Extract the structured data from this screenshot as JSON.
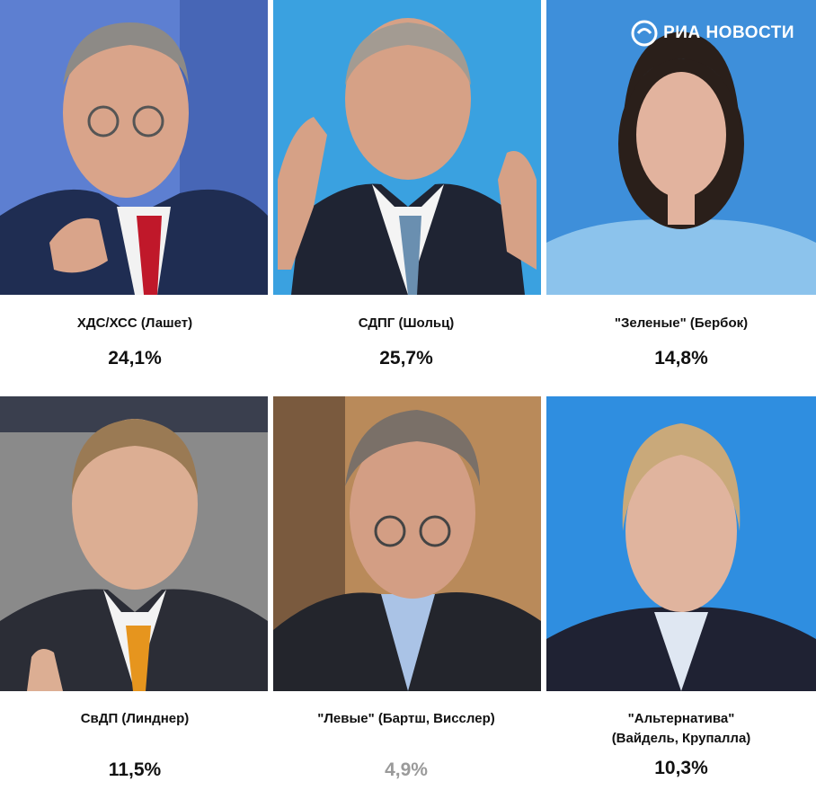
{
  "logo": {
    "text": "РИА НОВОСТИ",
    "icon": "ria-novosti-logo-icon"
  },
  "parties": [
    {
      "label": "ХДС/ХСС (Лашет)",
      "value": "24,1%",
      "photo_bg": "#5d7fd1",
      "muted": false
    },
    {
      "label": "СДПГ (Шольц)",
      "value": "25,7%",
      "photo_bg": "#3aa1e0",
      "muted": false
    },
    {
      "label": "\"Зеленые\" (Бербок)",
      "value": "14,8%",
      "photo_bg": "#3e8fda",
      "muted": false
    },
    {
      "label": "СвДП (Линднер)",
      "value": "11,5%",
      "photo_bg": "#8a8a8a",
      "muted": false
    },
    {
      "label": "\"Левые\" (Бартш, Висслер)",
      "value": "4,9%",
      "photo_bg": "#b98a5a",
      "muted": true
    },
    {
      "label_lines": [
        "\"Альтернатива\"",
        "(Вайдель, Крупалла)"
      ],
      "value": "10,3%",
      "photo_bg": "#2f8ee0",
      "muted": false
    }
  ]
}
